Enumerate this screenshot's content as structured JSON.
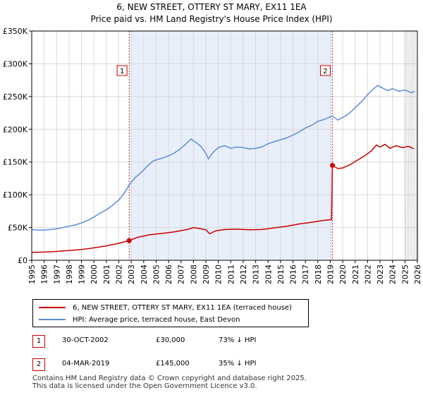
{
  "title_line1": "6, NEW STREET, OTTERY ST MARY, EX11 1EA",
  "title_line2": "Price paid vs. HM Land Registry's House Price Index (HPI)",
  "colors": {
    "red": "#cc0000",
    "blue": "#5b8fd6",
    "shade": "#e8eefa",
    "grid": "#d9d9d9"
  },
  "chart_data": {
    "type": "line",
    "xlim": [
      1995,
      2026
    ],
    "ylim": [
      0,
      350000
    ],
    "y_ticks": [
      {
        "value": 0,
        "label": "£0"
      },
      {
        "value": 50000,
        "label": "£50K"
      },
      {
        "value": 100000,
        "label": "£100K"
      },
      {
        "value": 150000,
        "label": "£150K"
      },
      {
        "value": 200000,
        "label": "£200K"
      },
      {
        "value": 250000,
        "label": "£250K"
      },
      {
        "value": 300000,
        "label": "£300K"
      },
      {
        "value": 350000,
        "label": "£350K"
      }
    ],
    "x_ticks": [
      1995,
      1996,
      1997,
      1998,
      1999,
      2000,
      2001,
      2002,
      2003,
      2004,
      2005,
      2006,
      2007,
      2008,
      2009,
      2010,
      2011,
      2012,
      2013,
      2014,
      2015,
      2016,
      2017,
      2018,
      2019,
      2020,
      2021,
      2022,
      2023,
      2024,
      2025,
      2026
    ],
    "shaded_range": [
      2002.83,
      2019.17
    ],
    "forecast_from": 2025.0,
    "series": [
      {
        "name": "6, NEW STREET, OTTERY ST MARY, EX11 1EA (terraced house)",
        "color": "#cc0000",
        "points": [
          [
            1995.0,
            12000
          ],
          [
            1996.0,
            12500
          ],
          [
            1997.0,
            13500
          ],
          [
            1998.0,
            15000
          ],
          [
            1999.0,
            16500
          ],
          [
            2000.0,
            19000
          ],
          [
            2001.0,
            22000
          ],
          [
            2002.0,
            26000
          ],
          [
            2002.83,
            30000
          ],
          [
            2003.5,
            35000
          ],
          [
            2004.5,
            39000
          ],
          [
            2005.5,
            41000
          ],
          [
            2006.5,
            43500
          ],
          [
            2007.5,
            47000
          ],
          [
            2008.0,
            50000
          ],
          [
            2008.5,
            48500
          ],
          [
            2009.0,
            46500
          ],
          [
            2009.3,
            40500
          ],
          [
            2009.8,
            45000
          ],
          [
            2010.5,
            47000
          ],
          [
            2011.5,
            47500
          ],
          [
            2012.5,
            46500
          ],
          [
            2013.5,
            47000
          ],
          [
            2014.5,
            49500
          ],
          [
            2015.5,
            52000
          ],
          [
            2016.5,
            55500
          ],
          [
            2017.5,
            58000
          ],
          [
            2018.5,
            61000
          ],
          [
            2019.1,
            62000
          ],
          [
            2019.17,
            145000
          ],
          [
            2019.6,
            140000
          ],
          [
            2020.0,
            141000
          ],
          [
            2020.6,
            146000
          ],
          [
            2021.2,
            153000
          ],
          [
            2021.8,
            160000
          ],
          [
            2022.3,
            167000
          ],
          [
            2022.7,
            176000
          ],
          [
            2023.0,
            173000
          ],
          [
            2023.4,
            177000
          ],
          [
            2023.8,
            171000
          ],
          [
            2024.3,
            175000
          ],
          [
            2024.8,
            172000
          ],
          [
            2025.3,
            174000
          ],
          [
            2025.7,
            170000
          ]
        ]
      },
      {
        "name": "HPI: Average price, terraced house, East Devon",
        "color": "#5b8fd6",
        "points": [
          [
            1995.0,
            47000
          ],
          [
            1995.5,
            46000
          ],
          [
            1996.0,
            46000
          ],
          [
            1996.5,
            47000
          ],
          [
            1997.0,
            48000
          ],
          [
            1997.5,
            50000
          ],
          [
            1998.0,
            52000
          ],
          [
            1998.5,
            54000
          ],
          [
            1999.0,
            57000
          ],
          [
            1999.5,
            61000
          ],
          [
            2000.0,
            66000
          ],
          [
            2000.5,
            72000
          ],
          [
            2001.0,
            77000
          ],
          [
            2001.5,
            84000
          ],
          [
            2002.0,
            92000
          ],
          [
            2002.5,
            104000
          ],
          [
            2002.83,
            115000
          ],
          [
            2003.3,
            126000
          ],
          [
            2003.8,
            134000
          ],
          [
            2004.3,
            144000
          ],
          [
            2004.8,
            152000
          ],
          [
            2005.3,
            155000
          ],
          [
            2005.8,
            158000
          ],
          [
            2006.3,
            162000
          ],
          [
            2006.8,
            168000
          ],
          [
            2007.3,
            176000
          ],
          [
            2007.8,
            185000
          ],
          [
            2008.2,
            180000
          ],
          [
            2008.6,
            174000
          ],
          [
            2009.0,
            163000
          ],
          [
            2009.2,
            155000
          ],
          [
            2009.6,
            165000
          ],
          [
            2010.0,
            172000
          ],
          [
            2010.5,
            175000
          ],
          [
            2011.0,
            171000
          ],
          [
            2011.5,
            173000
          ],
          [
            2012.0,
            172000
          ],
          [
            2012.5,
            170000
          ],
          [
            2013.0,
            171000
          ],
          [
            2013.5,
            173000
          ],
          [
            2014.0,
            178000
          ],
          [
            2014.5,
            181000
          ],
          [
            2015.0,
            184000
          ],
          [
            2015.5,
            187000
          ],
          [
            2016.0,
            191000
          ],
          [
            2016.5,
            196000
          ],
          [
            2017.0,
            202000
          ],
          [
            2017.5,
            206000
          ],
          [
            2018.0,
            212000
          ],
          [
            2018.5,
            215000
          ],
          [
            2019.0,
            219000
          ],
          [
            2019.17,
            220000
          ],
          [
            2019.6,
            214000
          ],
          [
            2020.0,
            218000
          ],
          [
            2020.5,
            224000
          ],
          [
            2021.0,
            233000
          ],
          [
            2021.5,
            242000
          ],
          [
            2022.0,
            253000
          ],
          [
            2022.5,
            262000
          ],
          [
            2022.8,
            267000
          ],
          [
            2023.2,
            263000
          ],
          [
            2023.6,
            259000
          ],
          [
            2024.0,
            262000
          ],
          [
            2024.5,
            258000
          ],
          [
            2025.0,
            260000
          ],
          [
            2025.5,
            256000
          ],
          [
            2025.8,
            258000
          ]
        ]
      }
    ],
    "sales": [
      {
        "id": "1",
        "x": 2002.83,
        "y": 30000
      },
      {
        "id": "2",
        "x": 2019.17,
        "y": 145000
      }
    ]
  },
  "legend": {
    "series1": "6, NEW STREET, OTTERY ST MARY, EX11 1EA (terraced house)",
    "series2": "HPI: Average price, terraced house, East Devon"
  },
  "transactions": [
    {
      "id": "1",
      "date": "30-OCT-2002",
      "price": "£30,000",
      "hpi": "73% ↓ HPI"
    },
    {
      "id": "2",
      "date": "04-MAR-2019",
      "price": "£145,000",
      "hpi": "35% ↓ HPI"
    }
  ],
  "footer_line1": "Contains HM Land Registry data © Crown copyright and database right 2025.",
  "footer_line2": "This data is licensed under the Open Government Licence v3.0."
}
